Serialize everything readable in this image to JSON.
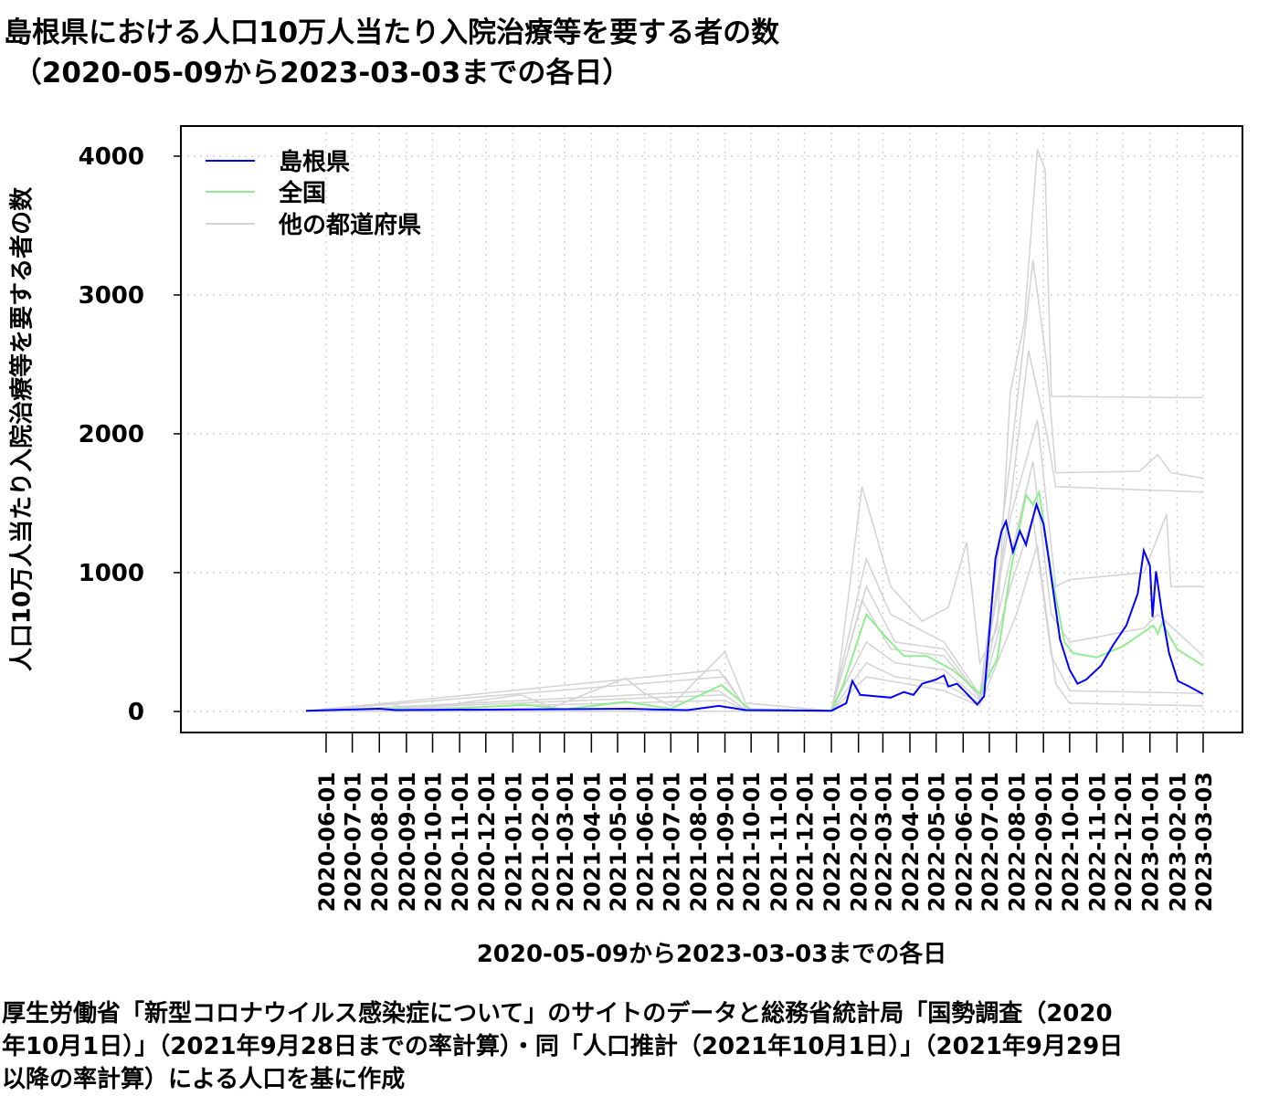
{
  "chart_data": {
    "type": "line",
    "title_line1": "島根県における人口10万人当たり入院治療等を要する者の数",
    "title_line2": "（2020-05-09から2023-03-03までの各日）",
    "xlabel": "2020-05-09から2023-03-03までの各日",
    "ylabel": "人口10万人当たり入院治療等を要する者の数",
    "caption": "厚生労働省「新型コロナウイルス感染症について」のサイトのデータと総務省統計局「国勢調査（2020\n年10月1日）」（2021年9月28日までの率計算）・同「人口推計（2021年10月1日）」（2021年9月29日\n以降の率計算）による人口を基に作成",
    "xlim": [
      "2020-05-09",
      "2023-03-03"
    ],
    "ylim": [
      0,
      4000
    ],
    "y_ticks": [
      0,
      1000,
      2000,
      3000,
      4000
    ],
    "x_ticks": [
      "2020-06-01",
      "2020-07-01",
      "2020-08-01",
      "2020-09-01",
      "2020-10-01",
      "2020-11-01",
      "2020-12-01",
      "2021-01-01",
      "2021-02-01",
      "2021-03-01",
      "2021-04-01",
      "2021-05-01",
      "2021-06-01",
      "2021-07-01",
      "2021-08-01",
      "2021-09-01",
      "2021-10-01",
      "2021-11-01",
      "2021-12-01",
      "2022-01-01",
      "2022-02-01",
      "2022-03-01",
      "2022-04-01",
      "2022-05-01",
      "2022-06-01",
      "2022-07-01",
      "2022-08-01",
      "2022-09-01",
      "2022-10-01",
      "2022-11-01",
      "2022-12-01",
      "2023-01-01",
      "2023-02-01",
      "2023-03-03"
    ],
    "grid": true,
    "legend_position": "top-left",
    "colors": {
      "shimane": "#0000ff",
      "national": "#90ee90",
      "others": "#d3d3d3"
    },
    "legend": [
      "島根県",
      "全国",
      "他の都道府県"
    ],
    "series": [
      {
        "name": "他の都道府県",
        "role": "others",
        "points": [
          [
            "2020-05-09",
            5
          ],
          [
            "2020-08-10",
            60
          ],
          [
            "2020-09-10",
            15
          ],
          [
            "2021-01-10",
            120
          ],
          [
            "2021-02-15",
            30
          ],
          [
            "2021-05-10",
            240
          ],
          [
            "2021-06-01",
            130
          ],
          [
            "2021-07-01",
            40
          ],
          [
            "2021-09-01",
            430
          ],
          [
            "2021-09-25",
            60
          ],
          [
            "2022-01-01",
            5
          ],
          [
            "2022-01-10",
            300
          ],
          [
            "2022-02-05",
            1620
          ],
          [
            "2022-02-20",
            1300
          ],
          [
            "2022-03-10",
            900
          ],
          [
            "2022-04-15",
            650
          ],
          [
            "2022-05-15",
            750
          ],
          [
            "2022-06-05",
            1220
          ],
          [
            "2022-06-20",
            350
          ],
          [
            "2022-07-10",
            600
          ],
          [
            "2022-07-25",
            2300
          ],
          [
            "2022-08-10",
            2800
          ],
          [
            "2022-08-25",
            4050
          ],
          [
            "2022-09-03",
            3900
          ],
          [
            "2022-09-10",
            2270
          ],
          [
            "2023-03-03",
            2260
          ]
        ]
      },
      {
        "name": "他の都道府県",
        "role": "others",
        "points": [
          [
            "2020-05-09",
            2
          ],
          [
            "2021-08-25",
            300
          ],
          [
            "2021-09-25",
            20
          ],
          [
            "2022-01-01",
            5
          ],
          [
            "2022-02-10",
            1100
          ],
          [
            "2022-03-10",
            700
          ],
          [
            "2022-05-10",
            500
          ],
          [
            "2022-06-20",
            120
          ],
          [
            "2022-07-25",
            1800
          ],
          [
            "2022-08-20",
            3250
          ],
          [
            "2022-09-05",
            2500
          ],
          [
            "2022-09-15",
            1720
          ],
          [
            "2022-12-20",
            1730
          ],
          [
            "2023-01-10",
            1850
          ],
          [
            "2023-01-25",
            1720
          ],
          [
            "2023-03-03",
            1680
          ]
        ]
      },
      {
        "name": "他の都道府県",
        "role": "others",
        "points": [
          [
            "2020-05-09",
            2
          ],
          [
            "2021-09-01",
            250
          ],
          [
            "2021-09-25",
            20
          ],
          [
            "2022-01-01",
            5
          ],
          [
            "2022-02-10",
            900
          ],
          [
            "2022-03-15",
            500
          ],
          [
            "2022-05-10",
            450
          ],
          [
            "2022-06-20",
            100
          ],
          [
            "2022-07-25",
            1500
          ],
          [
            "2022-08-15",
            2600
          ],
          [
            "2022-09-05",
            2000
          ],
          [
            "2022-09-15",
            1620
          ],
          [
            "2023-03-03",
            1580
          ]
        ]
      },
      {
        "name": "他の都道府県",
        "role": "others",
        "points": [
          [
            "2020-05-09",
            1
          ],
          [
            "2021-08-25",
            150
          ],
          [
            "2021-09-25",
            10
          ],
          [
            "2022-01-01",
            3
          ],
          [
            "2022-02-05",
            800
          ],
          [
            "2022-03-10",
            450
          ],
          [
            "2022-05-10",
            400
          ],
          [
            "2022-06-20",
            100
          ],
          [
            "2022-07-25",
            1400
          ],
          [
            "2022-08-25",
            2100
          ],
          [
            "2022-09-15",
            900
          ],
          [
            "2022-10-01",
            950
          ],
          [
            "2022-12-25",
            1000
          ],
          [
            "2023-01-20",
            1420
          ],
          [
            "2023-01-25",
            900
          ],
          [
            "2023-03-03",
            900
          ]
        ]
      },
      {
        "name": "他の都道府県",
        "role": "others",
        "points": [
          [
            "2020-05-09",
            1
          ],
          [
            "2021-09-01",
            120
          ],
          [
            "2021-09-25",
            10
          ],
          [
            "2022-01-01",
            3
          ],
          [
            "2022-02-10",
            500
          ],
          [
            "2022-03-15",
            350
          ],
          [
            "2022-05-10",
            300
          ],
          [
            "2022-06-20",
            80
          ],
          [
            "2022-07-25",
            1100
          ],
          [
            "2022-08-20",
            1800
          ],
          [
            "2022-09-10",
            700
          ],
          [
            "2022-10-01",
            500
          ],
          [
            "2022-12-25",
            600
          ],
          [
            "2023-01-10",
            700
          ],
          [
            "2023-03-03",
            400
          ]
        ]
      },
      {
        "name": "他の都道府県",
        "role": "others",
        "points": [
          [
            "2020-05-09",
            1
          ],
          [
            "2021-09-01",
            80
          ],
          [
            "2021-09-25",
            5
          ],
          [
            "2022-01-01",
            2
          ],
          [
            "2022-02-10",
            350
          ],
          [
            "2022-03-15",
            250
          ],
          [
            "2022-05-10",
            200
          ],
          [
            "2022-06-20",
            60
          ],
          [
            "2022-07-25",
            900
          ],
          [
            "2022-08-20",
            1400
          ],
          [
            "2022-09-10",
            400
          ],
          [
            "2022-10-01",
            150
          ],
          [
            "2023-03-03",
            130
          ]
        ]
      },
      {
        "name": "他の都道府県",
        "role": "others",
        "points": [
          [
            "2020-05-09",
            1
          ],
          [
            "2022-01-01",
            2
          ],
          [
            "2022-02-10",
            250
          ],
          [
            "2022-05-10",
            150
          ],
          [
            "2022-06-20",
            40
          ],
          [
            "2022-08-01",
            700
          ],
          [
            "2022-08-25",
            1200
          ],
          [
            "2022-09-15",
            200
          ],
          [
            "2022-10-01",
            60
          ],
          [
            "2023-03-03",
            40
          ]
        ]
      },
      {
        "name": "全国",
        "role": "national",
        "points": [
          [
            "2020-05-09",
            5
          ],
          [
            "2020-08-10",
            20
          ],
          [
            "2020-10-01",
            10
          ],
          [
            "2021-01-15",
            50
          ],
          [
            "2021-03-01",
            15
          ],
          [
            "2021-05-10",
            70
          ],
          [
            "2021-07-01",
            20
          ],
          [
            "2021-08-28",
            190
          ],
          [
            "2021-10-01",
            10
          ],
          [
            "2022-01-01",
            5
          ],
          [
            "2022-01-15",
            200
          ],
          [
            "2022-02-10",
            700
          ],
          [
            "2022-03-01",
            560
          ],
          [
            "2022-03-25",
            400
          ],
          [
            "2022-04-20",
            400
          ],
          [
            "2022-05-20",
            300
          ],
          [
            "2022-06-20",
            130
          ],
          [
            "2022-07-10",
            380
          ],
          [
            "2022-07-25",
            1000
          ],
          [
            "2022-08-12",
            1560
          ],
          [
            "2022-08-20",
            1490
          ],
          [
            "2022-08-27",
            1580
          ],
          [
            "2022-09-10",
            1000
          ],
          [
            "2022-09-25",
            500
          ],
          [
            "2022-10-05",
            420
          ],
          [
            "2022-11-01",
            390
          ],
          [
            "2022-12-01",
            470
          ],
          [
            "2023-01-05",
            620
          ],
          [
            "2023-01-10",
            560
          ],
          [
            "2023-01-15",
            640
          ],
          [
            "2023-02-01",
            450
          ],
          [
            "2023-03-03",
            330
          ]
        ]
      },
      {
        "name": "島根県",
        "role": "shimane",
        "points": [
          [
            "2020-05-09",
            5
          ],
          [
            "2020-08-01",
            20
          ],
          [
            "2020-08-20",
            10
          ],
          [
            "2021-05-15",
            20
          ],
          [
            "2021-06-10",
            15
          ],
          [
            "2021-07-20",
            10
          ],
          [
            "2021-08-25",
            40
          ],
          [
            "2021-09-25",
            10
          ],
          [
            "2022-01-01",
            5
          ],
          [
            "2022-01-18",
            60
          ],
          [
            "2022-01-25",
            220
          ],
          [
            "2022-02-03",
            120
          ],
          [
            "2022-02-20",
            110
          ],
          [
            "2022-03-10",
            100
          ],
          [
            "2022-03-25",
            140
          ],
          [
            "2022-04-05",
            120
          ],
          [
            "2022-04-15",
            200
          ],
          [
            "2022-05-01",
            230
          ],
          [
            "2022-05-10",
            260
          ],
          [
            "2022-05-15",
            180
          ],
          [
            "2022-05-25",
            200
          ],
          [
            "2022-06-05",
            130
          ],
          [
            "2022-06-17",
            50
          ],
          [
            "2022-06-25",
            110
          ],
          [
            "2022-07-08",
            1100
          ],
          [
            "2022-07-15",
            1300
          ],
          [
            "2022-07-20",
            1370
          ],
          [
            "2022-07-28",
            1150
          ],
          [
            "2022-08-05",
            1300
          ],
          [
            "2022-08-12",
            1200
          ],
          [
            "2022-08-18",
            1350
          ],
          [
            "2022-08-24",
            1490
          ],
          [
            "2022-09-01",
            1350
          ],
          [
            "2022-09-07",
            1100
          ],
          [
            "2022-09-20",
            520
          ],
          [
            "2022-10-01",
            300
          ],
          [
            "2022-10-10",
            200
          ],
          [
            "2022-10-20",
            230
          ],
          [
            "2022-11-06",
            330
          ],
          [
            "2022-11-20",
            480
          ],
          [
            "2022-12-05",
            620
          ],
          [
            "2022-12-18",
            850
          ],
          [
            "2022-12-25",
            1160
          ],
          [
            "2023-01-01",
            1050
          ],
          [
            "2023-01-04",
            680
          ],
          [
            "2023-01-08",
            1010
          ],
          [
            "2023-01-15",
            700
          ],
          [
            "2023-01-23",
            420
          ],
          [
            "2023-02-02",
            220
          ],
          [
            "2023-02-15",
            180
          ],
          [
            "2023-03-03",
            125
          ]
        ]
      }
    ]
  }
}
